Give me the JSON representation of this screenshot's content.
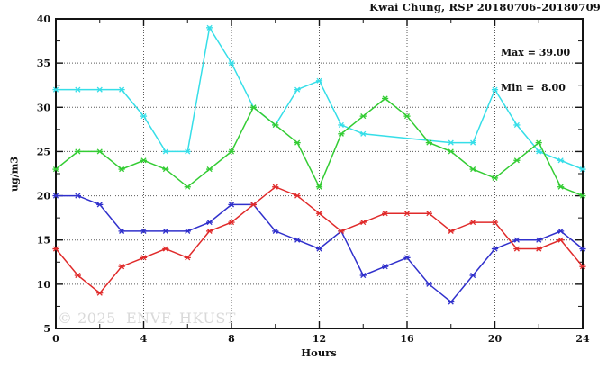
{
  "title": "Kwai Chung, RSP 20180706–20180709",
  "stats": {
    "max_label": "Max = 39.00",
    "min_label": "Min =  8.00"
  },
  "watermark": "© 2025  ENVF, HKUST",
  "chart_data": {
    "type": "line",
    "title": "Kwai Chung, RSP 20180706–20180709",
    "xlabel": "Hours",
    "ylabel": "ug/m3",
    "xlim": [
      0,
      24
    ],
    "ylim": [
      5,
      40
    ],
    "grid": true,
    "legend_position": "none",
    "annotations": [
      "Max = 39.00",
      "Min =  8.00"
    ],
    "x_major_ticks": [
      0,
      4,
      8,
      12,
      16,
      20,
      24
    ],
    "x_minor_ticks": [
      2,
      6,
      10,
      14,
      18,
      22
    ],
    "y_major_ticks": [
      5,
      10,
      15,
      20,
      25,
      30,
      35,
      40
    ],
    "y_minor_ticks": [
      7.5,
      12.5,
      17.5,
      22.5,
      27.5,
      32.5,
      37.5
    ],
    "x_grid_at": [
      4,
      8,
      12,
      16,
      20
    ],
    "y_grid_at": [
      10,
      15,
      20,
      25,
      30,
      35
    ],
    "x": [
      0,
      1,
      2,
      3,
      4,
      5,
      6,
      7,
      8,
      9,
      10,
      11,
      12,
      13,
      14,
      15,
      16,
      17,
      18,
      19,
      20,
      21,
      22,
      23,
      24
    ],
    "series": [
      {
        "name": "series-cyan",
        "color": "#35DEE8",
        "values": [
          32,
          32,
          32,
          32,
          29,
          25,
          25,
          39,
          35,
          30,
          28,
          32,
          33,
          28,
          27,
          null,
          null,
          null,
          26,
          26,
          32,
          28,
          25,
          24,
          23
        ]
      },
      {
        "name": "series-green",
        "color": "#33CC33",
        "values": [
          23,
          25,
          25,
          23,
          24,
          23,
          21,
          23,
          25,
          30,
          28,
          26,
          21,
          27,
          29,
          31,
          29,
          26,
          25,
          23,
          22,
          24,
          26,
          21,
          20
        ]
      },
      {
        "name": "series-blue",
        "color": "#3030CC",
        "values": [
          20,
          20,
          19,
          16,
          16,
          16,
          16,
          17,
          19,
          19,
          16,
          15,
          14,
          16,
          11,
          12,
          13,
          10,
          8,
          11,
          14,
          15,
          15,
          16,
          14
        ]
      },
      {
        "name": "series-red",
        "color": "#E02A2A",
        "values": [
          14,
          11,
          9,
          12,
          13,
          14,
          13,
          16,
          17,
          19,
          21,
          20,
          18,
          16,
          17,
          18,
          18,
          18,
          16,
          17,
          17,
          14,
          14,
          15,
          12
        ]
      }
    ],
    "stats": {
      "max": 39.0,
      "min": 8.0
    }
  }
}
